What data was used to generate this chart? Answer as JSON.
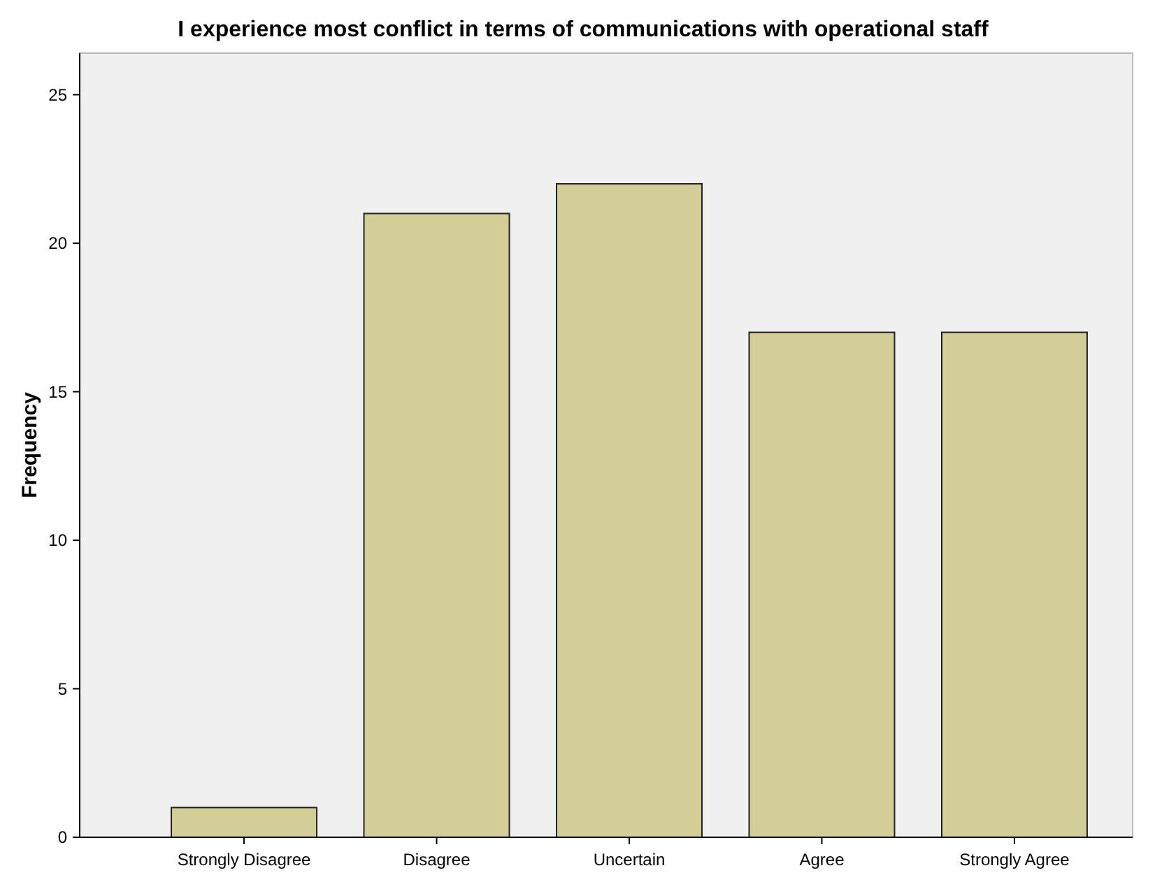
{
  "chart_data": {
    "type": "bar",
    "title": "I experience most conflict in terms of communications with operational staff",
    "ylabel": "Frequency",
    "categories": [
      "Strongly Disagree",
      "Disagree",
      "Uncertain",
      "Agree",
      "Strongly Agree"
    ],
    "values": [
      1,
      21,
      22,
      17,
      17
    ],
    "color": "#d3ce97",
    "ylim": [
      0,
      26.4
    ],
    "yticks": [
      0,
      5,
      10,
      15,
      20,
      25
    ],
    "grid": false
  }
}
